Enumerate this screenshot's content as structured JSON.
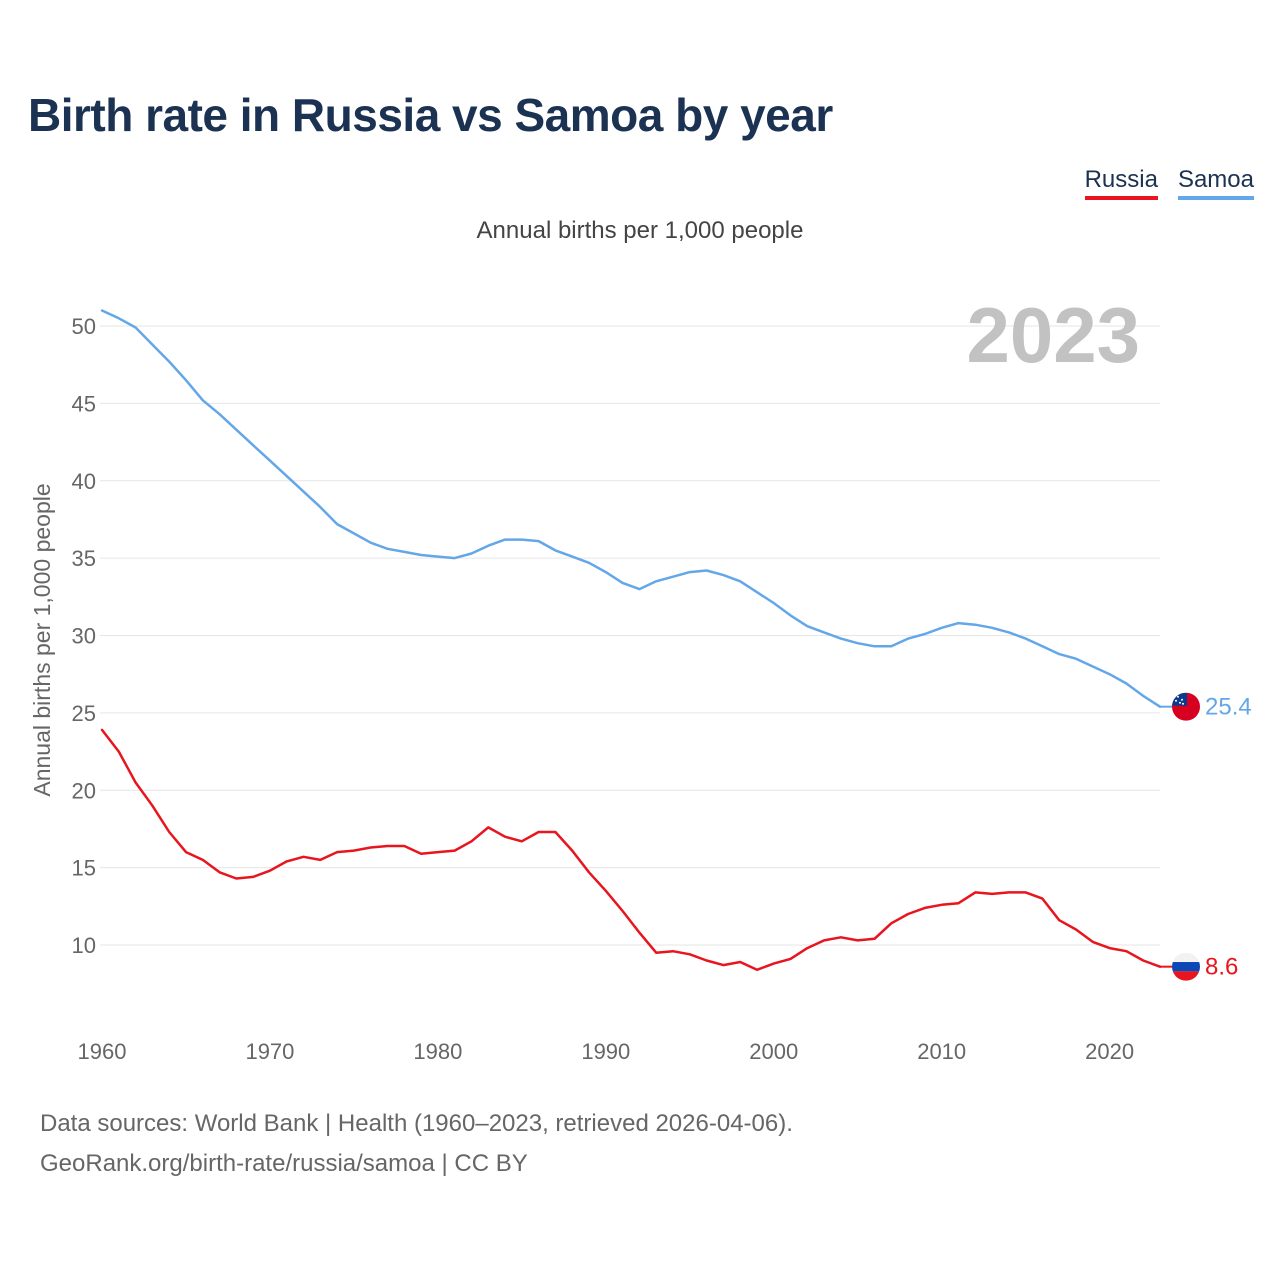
{
  "title": "Birth rate in Russia vs Samoa by year",
  "subtitle": "Annual births per 1,000 people",
  "legend": [
    {
      "name": "Russia",
      "color": "#e8141e"
    },
    {
      "name": "Samoa",
      "color": "#64a7e8"
    }
  ],
  "year_label": "2023",
  "footer": {
    "line1": "Data sources: World Bank | Health (1960–2023, retrieved 2026-04-06).",
    "line2": "GeoRank.org/birth-rate/russia/samoa | CC BY"
  },
  "chart_data": {
    "type": "line",
    "title": "Birth rate in Russia vs Samoa by year",
    "subtitle": "Annual births per 1,000 people",
    "xlabel": "",
    "ylabel": "Annual births per 1,000 people",
    "xlim": [
      1960,
      2023
    ],
    "ylim": [
      6,
      52
    ],
    "yticks": [
      10,
      15,
      20,
      25,
      30,
      35,
      40,
      45,
      50
    ],
    "xticks": [
      1960,
      1970,
      1980,
      1990,
      2000,
      2010,
      2020
    ],
    "grid": true,
    "legend_position": "top-right",
    "x": [
      1960,
      1961,
      1962,
      1963,
      1964,
      1965,
      1966,
      1967,
      1968,
      1969,
      1970,
      1971,
      1972,
      1973,
      1974,
      1975,
      1976,
      1977,
      1978,
      1979,
      1980,
      1981,
      1982,
      1983,
      1984,
      1985,
      1986,
      1987,
      1988,
      1989,
      1990,
      1991,
      1992,
      1993,
      1994,
      1995,
      1996,
      1997,
      1998,
      1999,
      2000,
      2001,
      2002,
      2003,
      2004,
      2005,
      2006,
      2007,
      2008,
      2009,
      2010,
      2011,
      2012,
      2013,
      2014,
      2015,
      2016,
      2017,
      2018,
      2019,
      2020,
      2021,
      2022,
      2023
    ],
    "series": [
      {
        "name": "Russia",
        "color": "#e8141e",
        "end_label": "8.6",
        "values": [
          23.9,
          22.5,
          20.5,
          19.0,
          17.3,
          16.0,
          15.5,
          14.7,
          14.3,
          14.4,
          14.8,
          15.4,
          15.7,
          15.5,
          16.0,
          16.1,
          16.3,
          16.4,
          16.4,
          15.9,
          16.0,
          16.1,
          16.7,
          17.6,
          17.0,
          16.7,
          17.3,
          17.3,
          16.1,
          14.7,
          13.5,
          12.2,
          10.8,
          9.5,
          9.6,
          9.4,
          9.0,
          8.7,
          8.9,
          8.4,
          8.8,
          9.1,
          9.8,
          10.3,
          10.5,
          10.3,
          10.4,
          11.4,
          12.0,
          12.4,
          12.6,
          12.7,
          13.4,
          13.3,
          13.4,
          13.4,
          13.0,
          11.6,
          11.0,
          10.2,
          9.8,
          9.6,
          9.0,
          8.6
        ]
      },
      {
        "name": "Samoa",
        "color": "#64a7e8",
        "end_label": "25.4",
        "values": [
          51.0,
          50.5,
          49.9,
          48.8,
          47.7,
          46.5,
          45.2,
          44.3,
          43.3,
          42.3,
          41.3,
          40.3,
          39.3,
          38.3,
          37.2,
          36.6,
          36.0,
          35.6,
          35.4,
          35.2,
          35.1,
          35.0,
          35.3,
          35.8,
          36.2,
          36.2,
          36.1,
          35.5,
          35.1,
          34.7,
          34.1,
          33.4,
          33.0,
          33.5,
          33.8,
          34.1,
          34.2,
          33.9,
          33.5,
          32.8,
          32.1,
          31.3,
          30.6,
          30.2,
          29.8,
          29.5,
          29.3,
          29.3,
          29.8,
          30.1,
          30.5,
          30.8,
          30.7,
          30.5,
          30.2,
          29.8,
          29.3,
          28.8,
          28.5,
          28.0,
          27.5,
          26.9,
          26.1,
          25.4
        ]
      }
    ]
  }
}
